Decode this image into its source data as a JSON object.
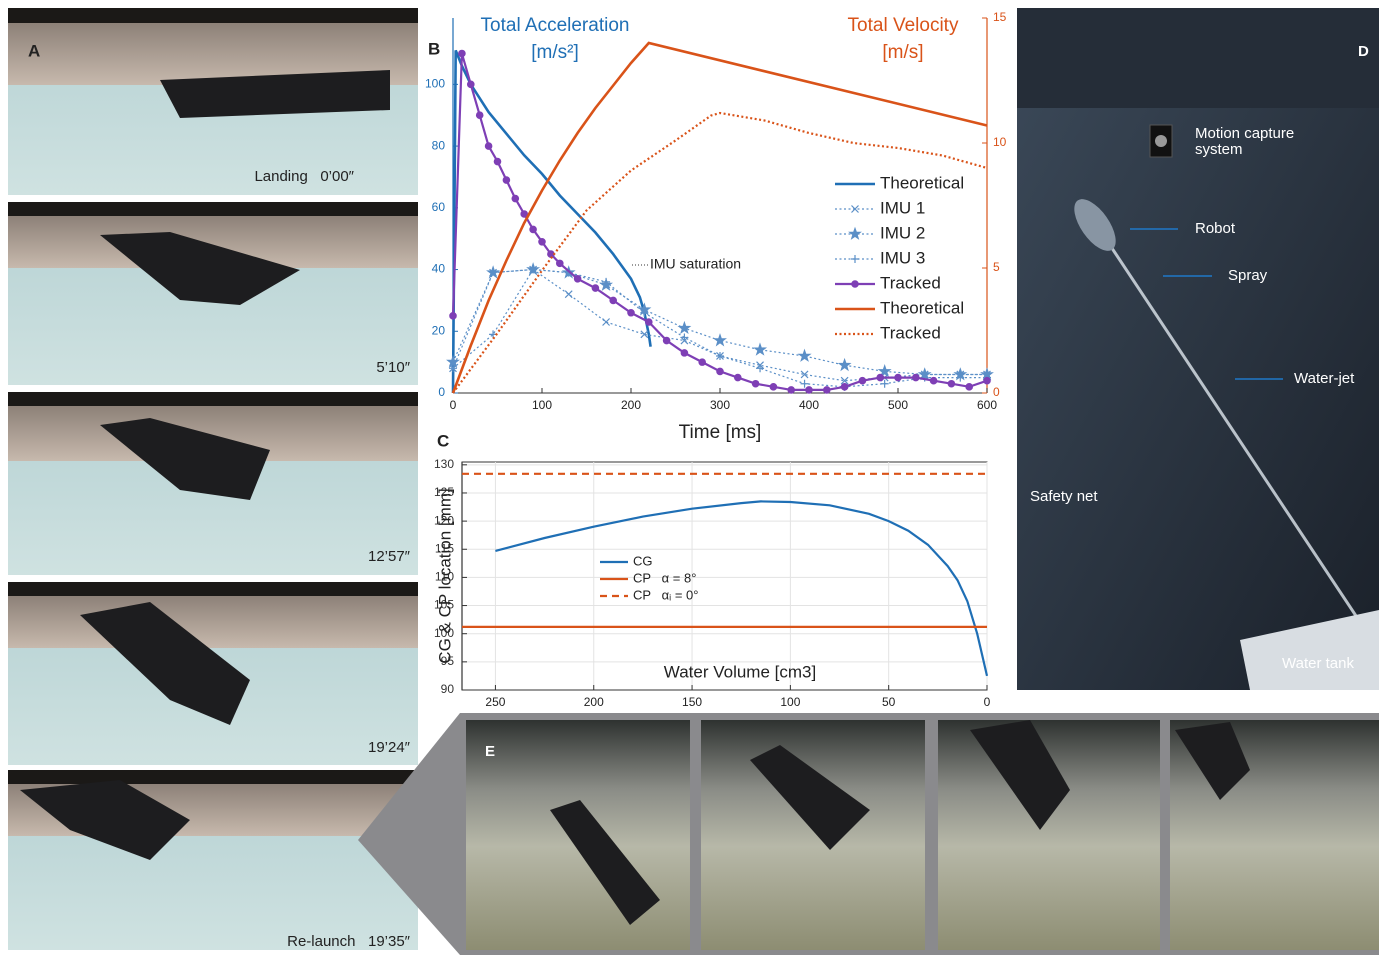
{
  "panels": {
    "A": {
      "label": "A",
      "captions": [
        "Landing   0’00″",
        "5’10″",
        "12’57″",
        "19’24″",
        "Re-launch   19’35″"
      ]
    },
    "D": {
      "label": "D",
      "annotations": [
        "Motion capture",
        "system",
        "Robot",
        "Spray",
        "Water-jet",
        "Safety net",
        "Water tank"
      ]
    },
    "E": {
      "label": "E"
    }
  },
  "chart_data": [
    {
      "type": "line",
      "panel": "B",
      "ylabel": [
        "Total Acceleration",
        "[m/s²]"
      ],
      "y2label": [
        "Total Velocity",
        "[m/s]"
      ],
      "xlabel": "Time [ms]",
      "annotation": "IMU saturation",
      "xlim": [
        0,
        600
      ],
      "xticks": [
        0,
        100,
        200,
        300,
        400,
        500,
        600
      ],
      "ylim": [
        0,
        121.5
      ],
      "yticks": [
        0,
        20,
        40,
        60,
        80,
        100
      ],
      "y2lim": [
        0,
        15
      ],
      "y2ticks": [
        0,
        5,
        10,
        15
      ],
      "y_color": "#1f6fb5",
      "y2_color": "#d95319",
      "grid": false,
      "legend": "right",
      "series": [
        {
          "name": "Theoretical",
          "color": "#1f6fb5",
          "style": "solid",
          "line_width": 2.6,
          "x": [
            0,
            3,
            10,
            20,
            40,
            60,
            80,
            100,
            120,
            140,
            160,
            180,
            200,
            210,
            215,
            220,
            222
          ],
          "values": [
            0,
            111,
            106,
            100,
            91,
            84,
            77,
            71,
            64,
            58,
            52,
            45,
            37,
            31,
            26,
            19,
            15
          ]
        },
        {
          "name": "IMU 1",
          "color": "#5b8fc7",
          "style": "dotted",
          "marker": "x",
          "line_width": 1.2,
          "x": [
            0,
            45,
            90,
            130,
            172,
            215,
            260,
            300,
            345,
            395,
            440,
            485,
            530,
            570,
            600
          ],
          "values": [
            8,
            39,
            40,
            32,
            23,
            19,
            17,
            12,
            9,
            6,
            4,
            5,
            6,
            6,
            6
          ]
        },
        {
          "name": "IMU 2",
          "color": "#5b8fc7",
          "style": "dotted",
          "marker": "star",
          "line_width": 1.2,
          "x": [
            0,
            45,
            90,
            130,
            172,
            215,
            260,
            300,
            345,
            395,
            440,
            485,
            530,
            570,
            600
          ],
          "values": [
            10,
            39,
            40,
            39,
            35,
            27,
            21,
            17,
            14,
            12,
            9,
            7,
            6,
            6,
            6
          ]
        },
        {
          "name": "IMU 3",
          "color": "#5b8fc7",
          "style": "dotted",
          "marker": "plus",
          "line_width": 1.2,
          "x": [
            0,
            45,
            90,
            130,
            172,
            215,
            260,
            300,
            345,
            395,
            440,
            485,
            530,
            570,
            600
          ],
          "values": [
            8,
            19,
            40,
            39,
            36,
            26,
            18,
            12,
            8,
            3,
            2,
            3,
            5,
            5,
            5
          ]
        },
        {
          "name": "Tracked",
          "color": "#7e3fb5",
          "style": "solid",
          "marker": "circle",
          "line_width": 2.2,
          "x": [
            0,
            10,
            20,
            30,
            40,
            50,
            60,
            70,
            80,
            90,
            100,
            110,
            120,
            140,
            160,
            180,
            200,
            220,
            240,
            260,
            280,
            300,
            320,
            340,
            360,
            380,
            400,
            420,
            440,
            460,
            480,
            500,
            520,
            540,
            560,
            580,
            600
          ],
          "values": [
            25,
            110,
            100,
            90,
            80,
            75,
            69,
            63,
            58,
            53,
            49,
            45,
            42,
            37,
            34,
            30,
            26,
            23,
            17,
            13,
            10,
            7,
            5,
            3,
            2,
            1,
            1,
            1,
            2,
            4,
            5,
            5,
            5,
            4,
            3,
            2,
            4
          ]
        },
        {
          "name": "Theoretical",
          "color": "#d95319",
          "style": "solid",
          "axis": "y2",
          "line_width": 2.6,
          "x": [
            0,
            20,
            40,
            60,
            80,
            100,
            120,
            140,
            160,
            180,
            200,
            220,
            600
          ],
          "values": [
            0,
            1.9,
            3.7,
            5.3,
            6.8,
            8.1,
            9.3,
            10.4,
            11.4,
            12.3,
            13.2,
            14.0,
            10.7
          ]
        },
        {
          "name": "Tracked",
          "color": "#d95319",
          "style": "dotted",
          "axis": "y2",
          "line_width": 2.2,
          "x": [
            0,
            50,
            100,
            150,
            200,
            250,
            290,
            300,
            350,
            400,
            450,
            500,
            550,
            600
          ],
          "values": [
            0,
            2.4,
            4.9,
            7.3,
            8.9,
            10.1,
            11.1,
            11.2,
            10.9,
            10.4,
            10.0,
            9.8,
            9.5,
            9.0
          ]
        }
      ]
    },
    {
      "type": "line",
      "panel": "C",
      "ylabel": "CG & CP location [mm]",
      "xlabel": "Water Volume [cm3]",
      "xlim": [
        267,
        0
      ],
      "xticks": [
        250,
        200,
        150,
        100,
        50,
        0
      ],
      "ylim": [
        90,
        130.5
      ],
      "yticks": [
        90,
        95,
        100,
        105,
        110,
        115,
        120,
        125,
        130
      ],
      "grid": true,
      "legend": "center left",
      "series": [
        {
          "name": "CG",
          "color": "#1f6fb5",
          "style": "solid",
          "line_width": 2.2,
          "x": [
            250,
            225,
            200,
            175,
            150,
            125,
            115,
            100,
            80,
            60,
            50,
            40,
            30,
            20,
            15,
            10,
            5,
            0
          ],
          "values": [
            114.7,
            117,
            119,
            120.8,
            122.2,
            123.2,
            123.5,
            123.4,
            122.8,
            121.3,
            120,
            118.3,
            115.8,
            112,
            109.5,
            105.8,
            100,
            92.5
          ]
        },
        {
          "name": "CP   α = 8°",
          "color": "#d95319",
          "style": "solid",
          "line_width": 2.2,
          "x": [
            267,
            0
          ],
          "values": [
            101.2,
            101.2
          ]
        },
        {
          "name": "CP   αᵢ = 0°",
          "color": "#d95319",
          "style": "dashed",
          "line_width": 2.2,
          "x": [
            267,
            0
          ],
          "values": [
            128.4,
            128.4
          ]
        }
      ]
    }
  ]
}
